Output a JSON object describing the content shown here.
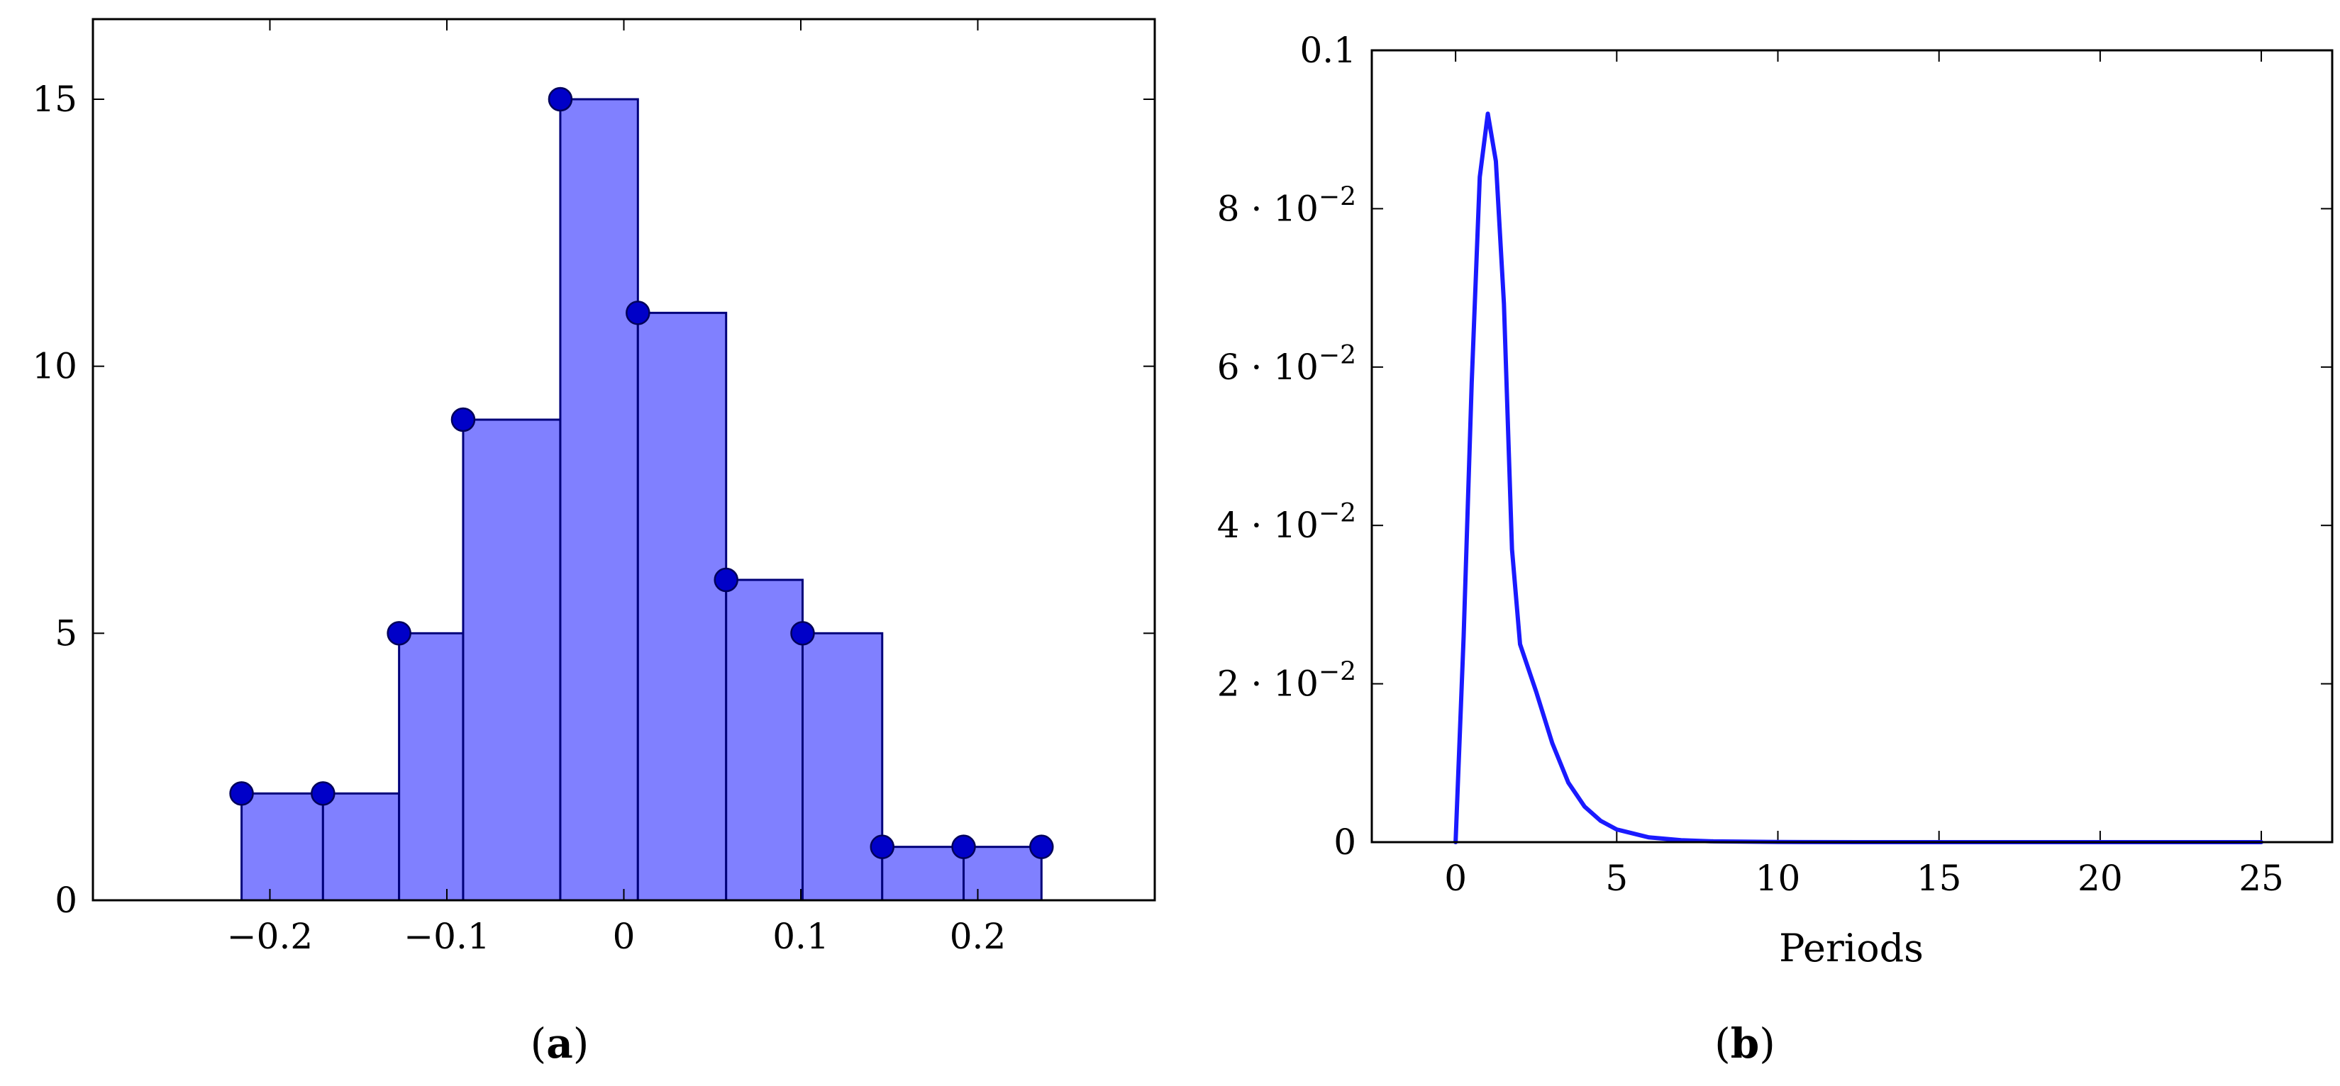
{
  "captions": {
    "a": {
      "open": "(",
      "letter": "a",
      "close": ")"
    },
    "b": {
      "open": "(",
      "letter": "b",
      "close": ")"
    }
  },
  "chart_data": [
    {
      "id": "a",
      "type": "bar",
      "title": "",
      "xlabel": "",
      "ylabel": "",
      "bin_edges": [
        -0.216,
        -0.17,
        -0.127,
        -0.0908,
        -0.0359,
        0.00794,
        0.0578,
        0.101,
        0.146,
        0.192,
        0.236
      ],
      "values": [
        2,
        2,
        5,
        9,
        15,
        11,
        6,
        5,
        1,
        1
      ],
      "markers": [
        {
          "x": -0.216,
          "y": 2
        },
        {
          "x": -0.17,
          "y": 2
        },
        {
          "x": -0.127,
          "y": 5
        },
        {
          "x": -0.0908,
          "y": 9
        },
        {
          "x": -0.0359,
          "y": 15
        },
        {
          "x": 0.00794,
          "y": 11
        },
        {
          "x": 0.0578,
          "y": 6
        },
        {
          "x": 0.101,
          "y": 5
        },
        {
          "x": 0.146,
          "y": 1
        },
        {
          "x": 0.192,
          "y": 1
        },
        {
          "x": 0.236,
          "y": 1
        }
      ],
      "xlim": [
        -0.3,
        0.3
      ],
      "ylim": [
        0,
        16.5
      ],
      "xticks": [
        -0.2,
        -0.1,
        0,
        0.1,
        0.2
      ],
      "xtick_labels": [
        "−0.2",
        "−0.1",
        "0",
        "0.1",
        "0.2"
      ],
      "yticks": [
        0,
        5,
        10,
        15
      ],
      "ytick_labels": [
        "0",
        "5",
        "10",
        "15"
      ],
      "grid": false,
      "colors": {
        "fill": "#8080ff",
        "stroke": "#00007a",
        "marker": "#0000c8"
      }
    },
    {
      "id": "b",
      "type": "line",
      "title": "",
      "xlabel": "Periods",
      "ylabel": "",
      "xlim": [
        -2.6,
        27.2
      ],
      "ylim": [
        0,
        0.1
      ],
      "xticks": [
        0,
        5,
        10,
        15,
        20,
        25
      ],
      "xtick_labels": [
        "0",
        "5",
        "10",
        "15",
        "20",
        "25"
      ],
      "yticks": [
        0,
        0.02,
        0.04,
        0.06,
        0.08,
        0.1
      ],
      "ytick_labels": [
        {
          "base": "0",
          "exp": ""
        },
        {
          "base": "2 · 10",
          "exp": "−2"
        },
        {
          "base": "4 · 10",
          "exp": "−2"
        },
        {
          "base": "6 · 10",
          "exp": "−2"
        },
        {
          "base": "8 · 10",
          "exp": "−2"
        },
        {
          "base": "0.1",
          "exp": ""
        }
      ],
      "grid": false,
      "series": [
        {
          "x": [
            0,
            0.25,
            0.5,
            0.75,
            1.0,
            1.25,
            1.5,
            1.75,
            2.0,
            2.5,
            3.0,
            3.5,
            4.0,
            4.5,
            5.0,
            6.0,
            7.0,
            8.0,
            10.0,
            12.5,
            15.0,
            20.0,
            25.0
          ],
          "values": [
            0,
            0.026,
            0.058,
            0.084,
            0.092,
            0.086,
            0.068,
            0.037,
            0.025,
            0.019,
            0.0125,
            0.0075,
            0.0045,
            0.0027,
            0.0016,
            0.0006,
            0.00025,
            0.0001,
            2e-05,
            3e-06,
            0,
            0,
            0
          ]
        }
      ],
      "colors": {
        "line": "#1a1aff"
      }
    }
  ]
}
